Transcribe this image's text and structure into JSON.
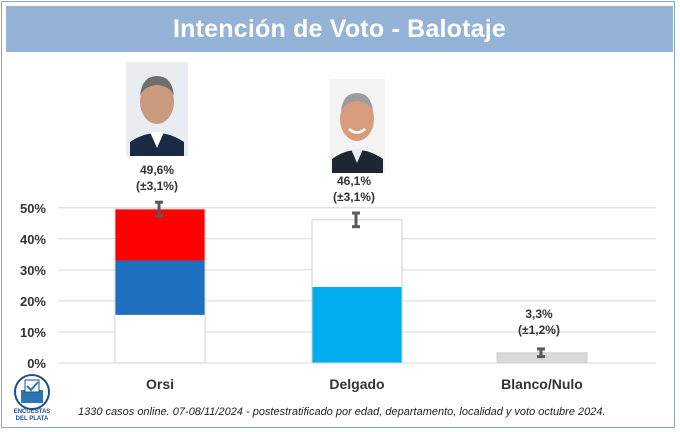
{
  "title": "Intención de Voto - Balotaje",
  "footnote": "1330 casos online.  07-08/11/2024 - postestratificado por edad, departamento, localidad y voto octubre 2024.",
  "logo": {
    "line1": "ENCUESTAS",
    "line2": "DEL PLATA",
    "icon": "ballot-box-icon"
  },
  "colors": {
    "title_bg": "#95B3D7",
    "red": "#FF0000",
    "blue": "#1F6FC0",
    "white": "#FFFFFF",
    "sky": "#00AEEF",
    "gray": "#D9D9D9",
    "error": "#595959"
  },
  "chart_data": {
    "type": "bar",
    "categories": [
      "Orsi",
      "Delgado",
      "Blanco/Nulo"
    ],
    "values": [
      49.6,
      46.1,
      3.3
    ],
    "errors": [
      3.1,
      3.1,
      1.2
    ],
    "value_labels": [
      "49,6%",
      "46,1%",
      "3,3%"
    ],
    "error_labels": [
      "(±3,1%)",
      "(±3,1%)",
      "(±1,2%)"
    ],
    "yticks": [
      "0%",
      "10%",
      "20%",
      "30%",
      "40%",
      "50%"
    ],
    "ylim": [
      0,
      50
    ],
    "grid": true,
    "segments": [
      [
        {
          "color": "white",
          "value": 15.5
        },
        {
          "color": "blue",
          "value": 17.5
        },
        {
          "color": "red",
          "value": 16.6
        }
      ],
      [
        {
          "color": "sky",
          "value": 24.5
        },
        {
          "color": "white",
          "value": 21.6
        }
      ],
      [
        {
          "color": "gray",
          "value": 3.3
        }
      ]
    ]
  }
}
